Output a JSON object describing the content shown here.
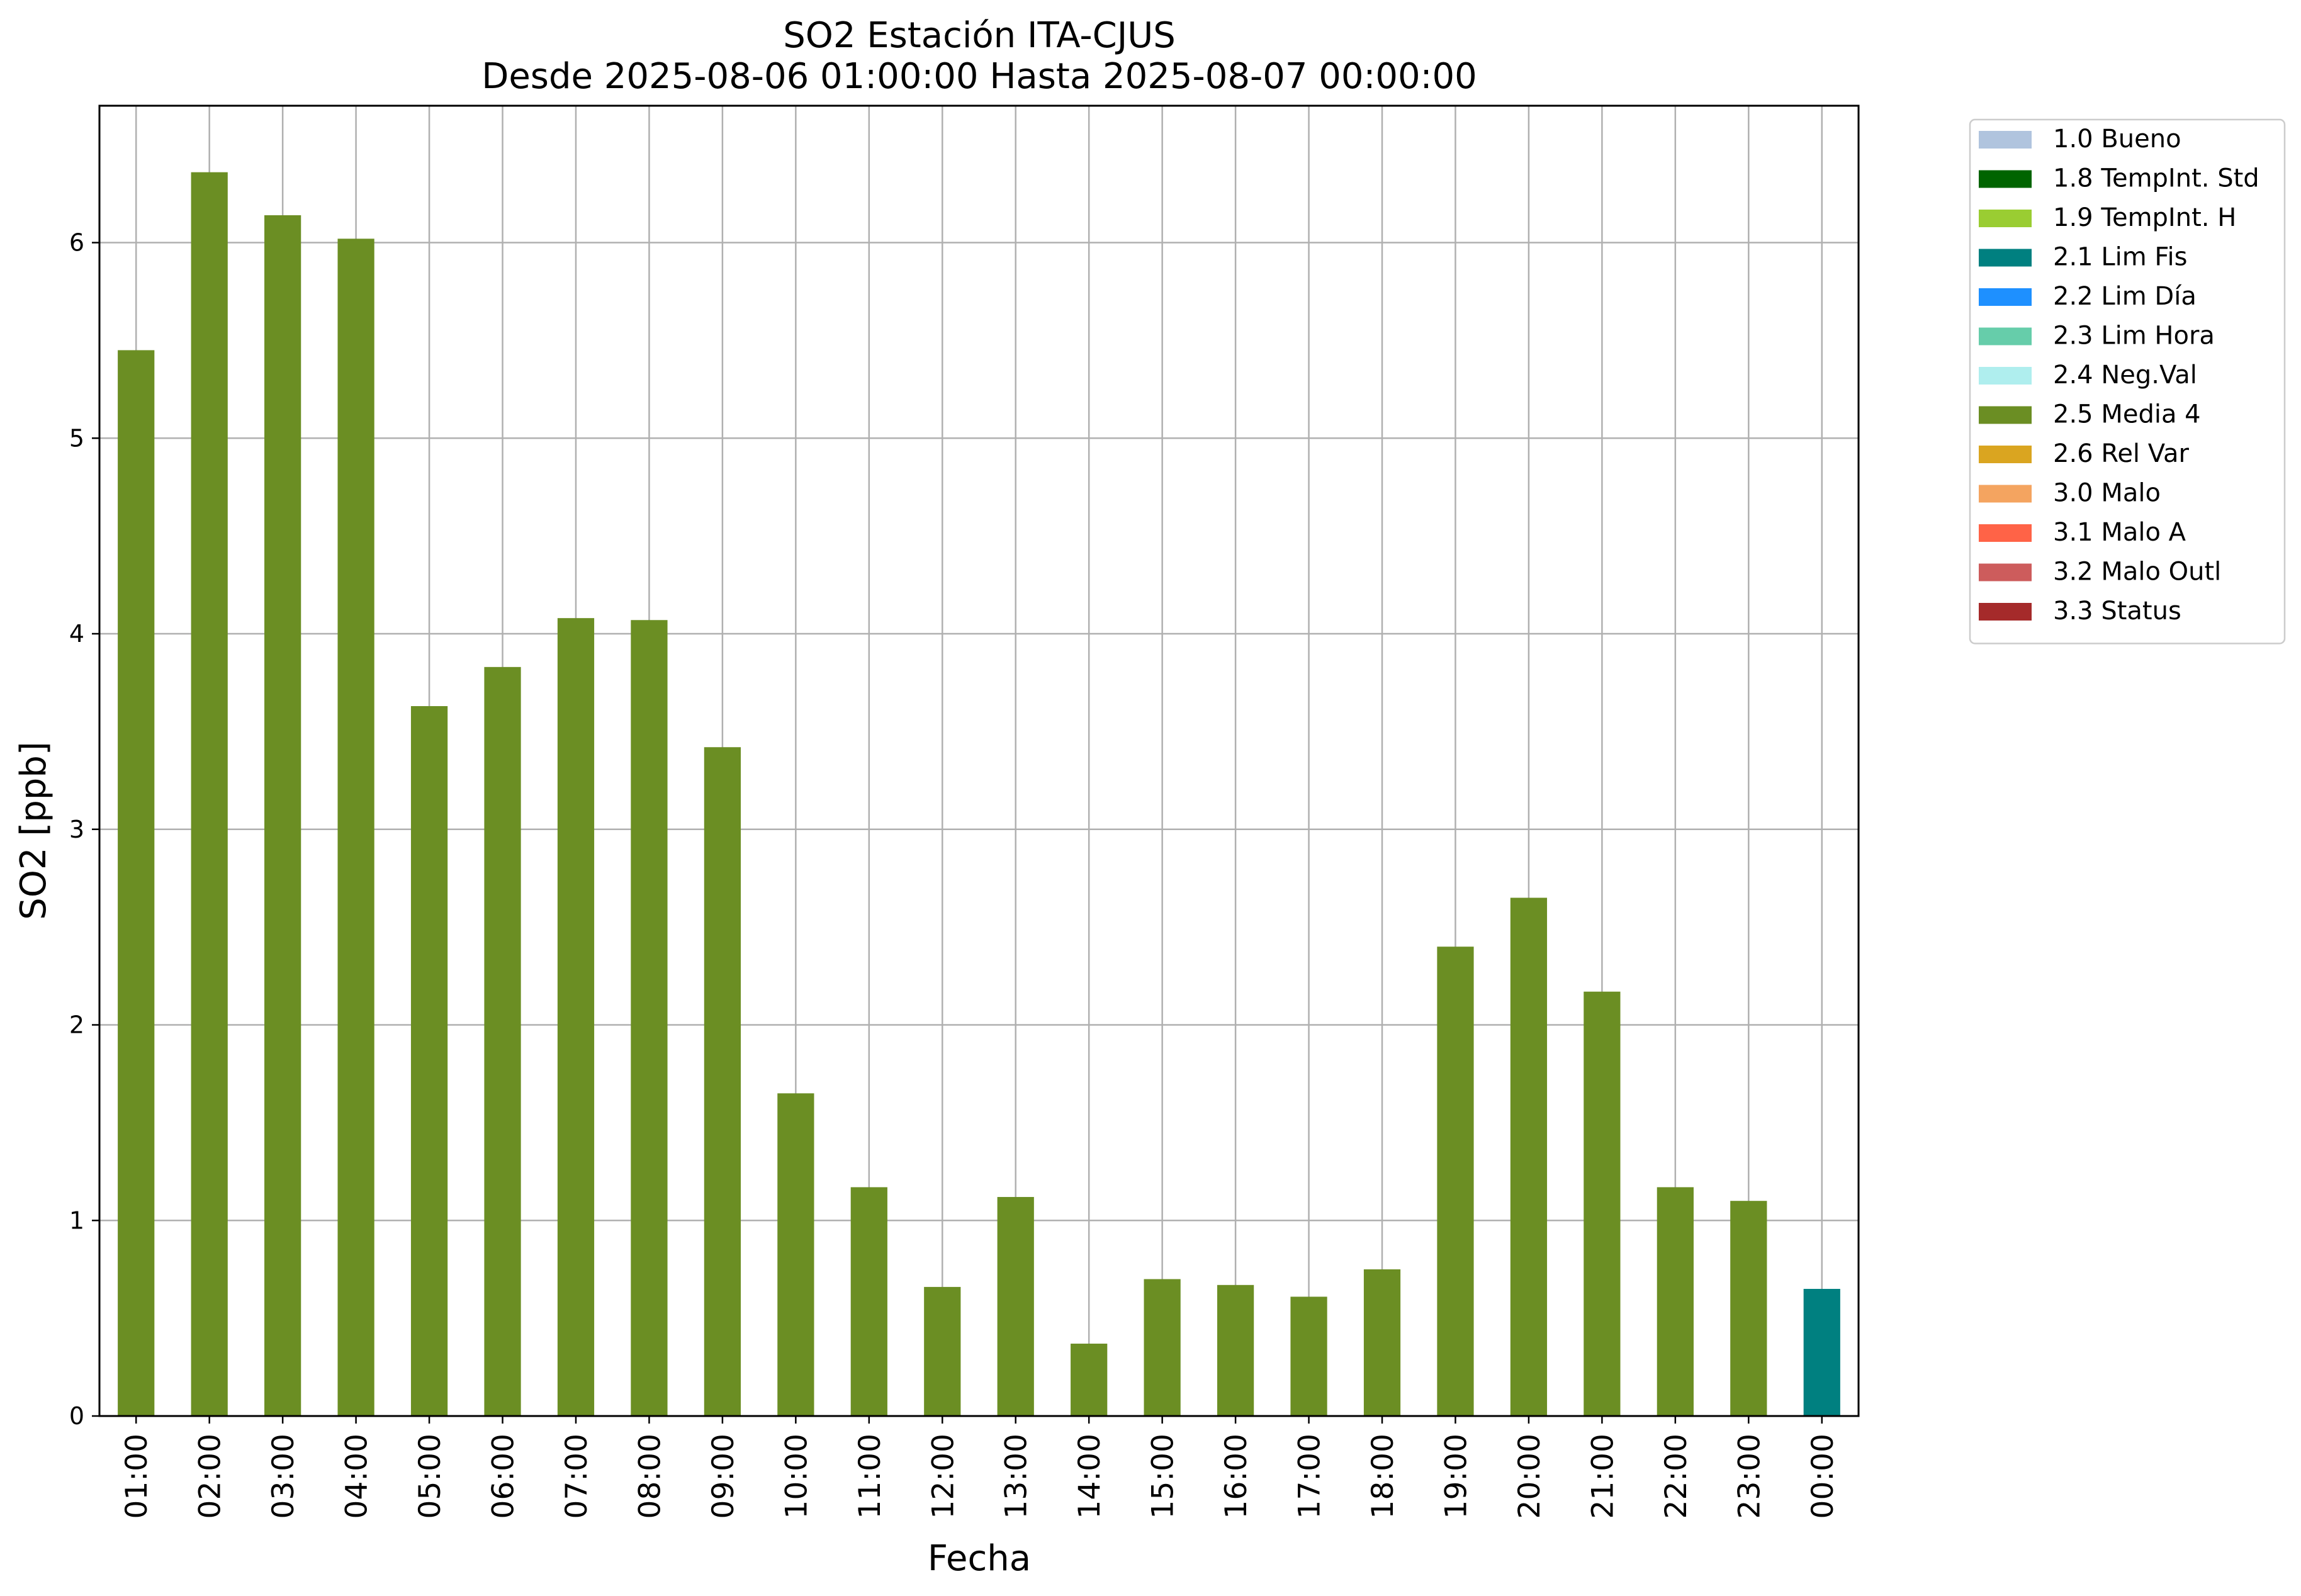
{
  "chart_data": {
    "type": "bar",
    "title_line1": "SO2 Estación ITA-CJUS",
    "title_line2": "Desde 2025-08-06 01:00:00 Hasta 2025-08-07 00:00:00",
    "xlabel": "Fecha",
    "ylabel": "SO2 [ppb]",
    "ylim": [
      0,
      6.7
    ],
    "yticks": [
      "0",
      "1",
      "2",
      "3",
      "4",
      "5",
      "6"
    ],
    "grid": true,
    "legend_placement": "outside top-right",
    "categories": [
      "01:00",
      "02:00",
      "03:00",
      "04:00",
      "05:00",
      "06:00",
      "07:00",
      "08:00",
      "09:00",
      "10:00",
      "11:00",
      "12:00",
      "13:00",
      "14:00",
      "15:00",
      "16:00",
      "17:00",
      "18:00",
      "19:00",
      "20:00",
      "21:00",
      "22:00",
      "23:00",
      "00:00"
    ],
    "values": [
      5.45,
      6.36,
      6.14,
      6.02,
      3.63,
      3.83,
      4.08,
      4.07,
      3.42,
      1.65,
      1.17,
      0.66,
      1.12,
      0.37,
      0.7,
      0.67,
      0.61,
      0.75,
      2.4,
      2.65,
      2.17,
      1.17,
      1.1,
      0.65
    ],
    "bar_flags": [
      "2.5 Media 4",
      "2.5 Media 4",
      "2.5 Media 4",
      "2.5 Media 4",
      "2.5 Media 4",
      "2.5 Media 4",
      "2.5 Media 4",
      "2.5 Media 4",
      "2.5 Media 4",
      "2.5 Media 4",
      "2.5 Media 4",
      "2.5 Media 4",
      "2.5 Media 4",
      "2.5 Media 4",
      "2.5 Media 4",
      "2.5 Media 4",
      "2.5 Media 4",
      "2.5 Media 4",
      "2.5 Media 4",
      "2.5 Media 4",
      "2.5 Media 4",
      "2.5 Media 4",
      "2.5 Media 4",
      "2.1 Lim Fis"
    ],
    "legend": [
      {
        "label": "1.0 Bueno",
        "color": "#b0c4de"
      },
      {
        "label": "1.8 TempInt. Std",
        "color": "#006400"
      },
      {
        "label": "1.9 TempInt. H",
        "color": "#9acd32"
      },
      {
        "label": "2.1 Lim Fis",
        "color": "#008080"
      },
      {
        "label": "2.2 Lim Día",
        "color": "#1e90ff"
      },
      {
        "label": "2.3 Lim Hora",
        "color": "#66cdaa"
      },
      {
        "label": "2.4 Neg.Val",
        "color": "#afeeee"
      },
      {
        "label": "2.5 Media 4",
        "color": "#6b8e23"
      },
      {
        "label": "2.6 Rel Var",
        "color": "#daa520"
      },
      {
        "label": "3.0 Malo",
        "color": "#f4a460"
      },
      {
        "label": "3.1 Malo A",
        "color": "#ff6347"
      },
      {
        "label": "3.2 Malo Outl",
        "color": "#cd5c5c"
      },
      {
        "label": "3.3 Status",
        "color": "#a52a2a"
      }
    ]
  }
}
